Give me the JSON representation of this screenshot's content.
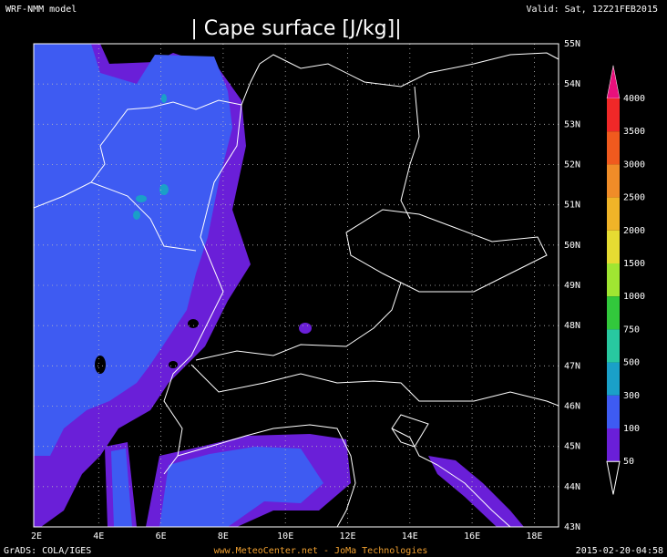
{
  "header": {
    "model": "WRF-NMM model",
    "valid": "Valid: Sat, 12Z21FEB2015"
  },
  "title": "| Cape surface [J/kg]|",
  "map": {
    "lat_labels": [
      "55N",
      "54N",
      "53N",
      "52N",
      "51N",
      "50N",
      "49N",
      "48N",
      "47N",
      "46N",
      "45N",
      "44N",
      "43N"
    ],
    "lon_labels": [
      "2E",
      "4E",
      "6E",
      "8E",
      "10E",
      "12E",
      "14E",
      "16E",
      "18E"
    ]
  },
  "colorbar": {
    "labels": [
      "4000",
      "3500",
      "3000",
      "2500",
      "2000",
      "1500",
      "1000",
      "750",
      "500",
      "300",
      "100",
      "50"
    ],
    "colors": [
      "#e8107c",
      "#f02828",
      "#f05a1e",
      "#f08c28",
      "#f0b428",
      "#e6dc32",
      "#a0e632",
      "#32c83c",
      "#28c8a0",
      "#1aa0c8",
      "#3e5bf2",
      "#6a1fd8",
      "#ffffff"
    ]
  },
  "footer": {
    "left": "GrADS: COLA/IGES",
    "center": "www.MeteoCenter.net  -  JoMa Technologies",
    "right": "2015-02-20-04:58"
  }
}
